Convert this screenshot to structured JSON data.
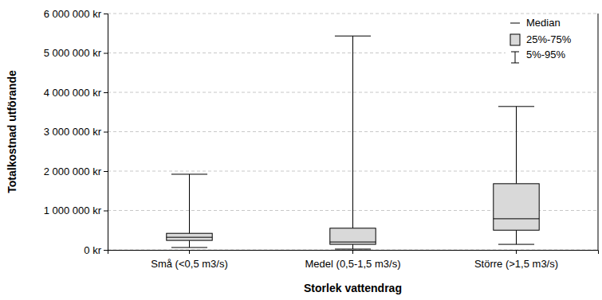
{
  "chart_data": {
    "type": "box",
    "x_label": "Storlek vattendrag",
    "y_label": "Totalkostnad utförande",
    "categories": [
      "Små (<0,5 m3/s)",
      "Medel (0,5-1,5 m3/s)",
      "Större (>1,5 m3/s)"
    ],
    "boxes": [
      {
        "p5": 60000,
        "q1": 240000,
        "median": 320000,
        "q3": 420000,
        "p95": 1920000
      },
      {
        "p5": 20000,
        "q1": 140000,
        "median": 200000,
        "q3": 550000,
        "p95": 5430000
      },
      {
        "p5": 140000,
        "q1": 500000,
        "median": 790000,
        "q3": 1680000,
        "p95": 3640000
      }
    ],
    "color": "#d9d9d9",
    "ylim": [
      0,
      6000000
    ],
    "yticks": [
      {
        "value": 0,
        "label": "0 kr"
      },
      {
        "value": 1000000,
        "label": "1 000 000 kr"
      },
      {
        "value": 2000000,
        "label": "2 000 000 kr"
      },
      {
        "value": 3000000,
        "label": "3 000 000 kr"
      },
      {
        "value": 4000000,
        "label": "4 000 000 kr"
      },
      {
        "value": 5000000,
        "label": "5 000 000 kr"
      },
      {
        "value": 6000000,
        "label": "6 000 000 kr"
      }
    ],
    "grid": true,
    "legend": "upper right",
    "legend_entries": [
      "Median",
      "25%-75%",
      "5%-95%"
    ]
  }
}
